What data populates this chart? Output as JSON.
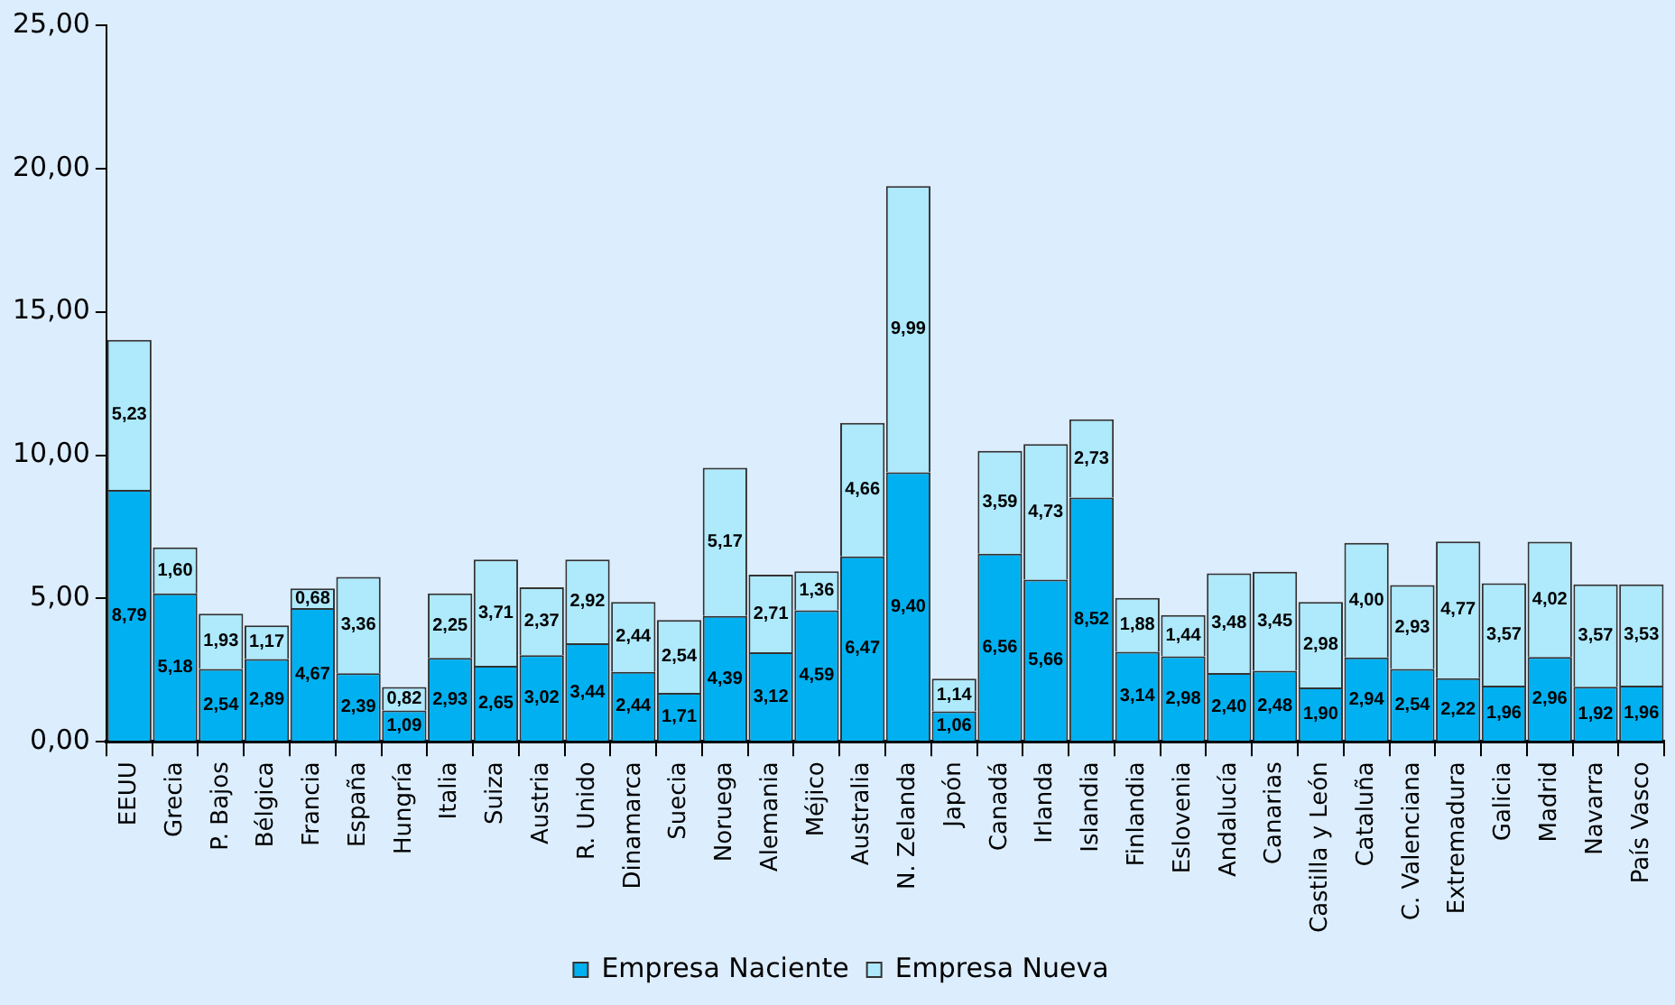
{
  "chart_data": {
    "type": "bar",
    "stacked": true,
    "categories": [
      "EEUU",
      "Grecia",
      "P. Bajos",
      "Bélgica",
      "Francia",
      "España",
      "Hungría",
      "Italia",
      "Suiza",
      "Austria",
      "R. Unido",
      "Dinamarca",
      "Suecia",
      "Noruega",
      "Alemania",
      "Méjico",
      "Australia",
      "N. Zelanda",
      "Japón",
      "Canadá",
      "Irlanda",
      "Islandia",
      "Finlandia",
      "Eslovenia",
      "Andalucía",
      "Canarias",
      "Castilla y León",
      "Cataluña",
      "C. Valenciana",
      "Extremadura",
      "Galicia",
      "Madrid",
      "Navarra",
      "País Vasco"
    ],
    "series": [
      {
        "name": "Empresa Naciente",
        "color": "#00b0f0",
        "values": [
          8.79,
          5.18,
          2.54,
          2.89,
          4.67,
          2.39,
          1.09,
          2.93,
          2.65,
          3.02,
          3.44,
          2.44,
          1.71,
          4.39,
          3.12,
          4.59,
          6.47,
          9.4,
          1.06,
          6.56,
          5.66,
          8.52,
          3.14,
          2.98,
          2.4,
          2.48,
          1.9,
          2.94,
          2.54,
          2.22,
          1.96,
          2.96,
          1.92,
          1.96
        ],
        "value_labels": [
          "8,79",
          "5,18",
          "2,54",
          "2,89",
          "4,67",
          "2,39",
          "1,09",
          "2,93",
          "2,65",
          "3,02",
          "3,44",
          "2,44",
          "1,71",
          "4,39",
          "3,12",
          "4,59",
          "6,47",
          "9,40",
          "1,06",
          "6,56",
          "5,66",
          "8,52",
          "3,14",
          "2,98",
          "2,40",
          "2,48",
          "1,90",
          "2,94",
          "2,54",
          "2,22",
          "1,96",
          "2,96",
          "1,92",
          "1,96"
        ]
      },
      {
        "name": "Empresa Nueva",
        "color": "#aee9fc",
        "values": [
          5.23,
          1.6,
          1.93,
          1.17,
          0.68,
          3.36,
          0.82,
          2.25,
          3.71,
          2.37,
          2.92,
          2.44,
          2.54,
          5.17,
          2.71,
          1.36,
          4.66,
          9.99,
          1.14,
          3.59,
          4.73,
          2.73,
          1.88,
          1.44,
          3.48,
          3.45,
          2.98,
          4.0,
          2.93,
          4.77,
          3.57,
          4.02,
          3.57,
          3.53
        ],
        "value_labels": [
          "5,23",
          "1,60",
          "1,93",
          "1,17",
          "0,68",
          "3,36",
          "0,82",
          "2,25",
          "3,71",
          "2,37",
          "2,92",
          "2,44",
          "2,54",
          "5,17",
          "2,71",
          "1,36",
          "4,66",
          "9,99",
          "1,14",
          "3,59",
          "4,73",
          "2,73",
          "1,88",
          "1,44",
          "3,48",
          "3,45",
          "2,98",
          "4,00",
          "2,93",
          "4,77",
          "3,57",
          "4,02",
          "3,57",
          "3,53"
        ]
      }
    ],
    "ylim": [
      0,
      25
    ],
    "yticks": [
      {
        "value": 0,
        "label": "0,00"
      },
      {
        "value": 5,
        "label": "5,00"
      },
      {
        "value": 10,
        "label": "10,00"
      },
      {
        "value": 15,
        "label": "15,00"
      },
      {
        "value": 20,
        "label": "20,00"
      },
      {
        "value": 25,
        "label": "25,00"
      }
    ],
    "grid": false,
    "legend": "bottom"
  }
}
